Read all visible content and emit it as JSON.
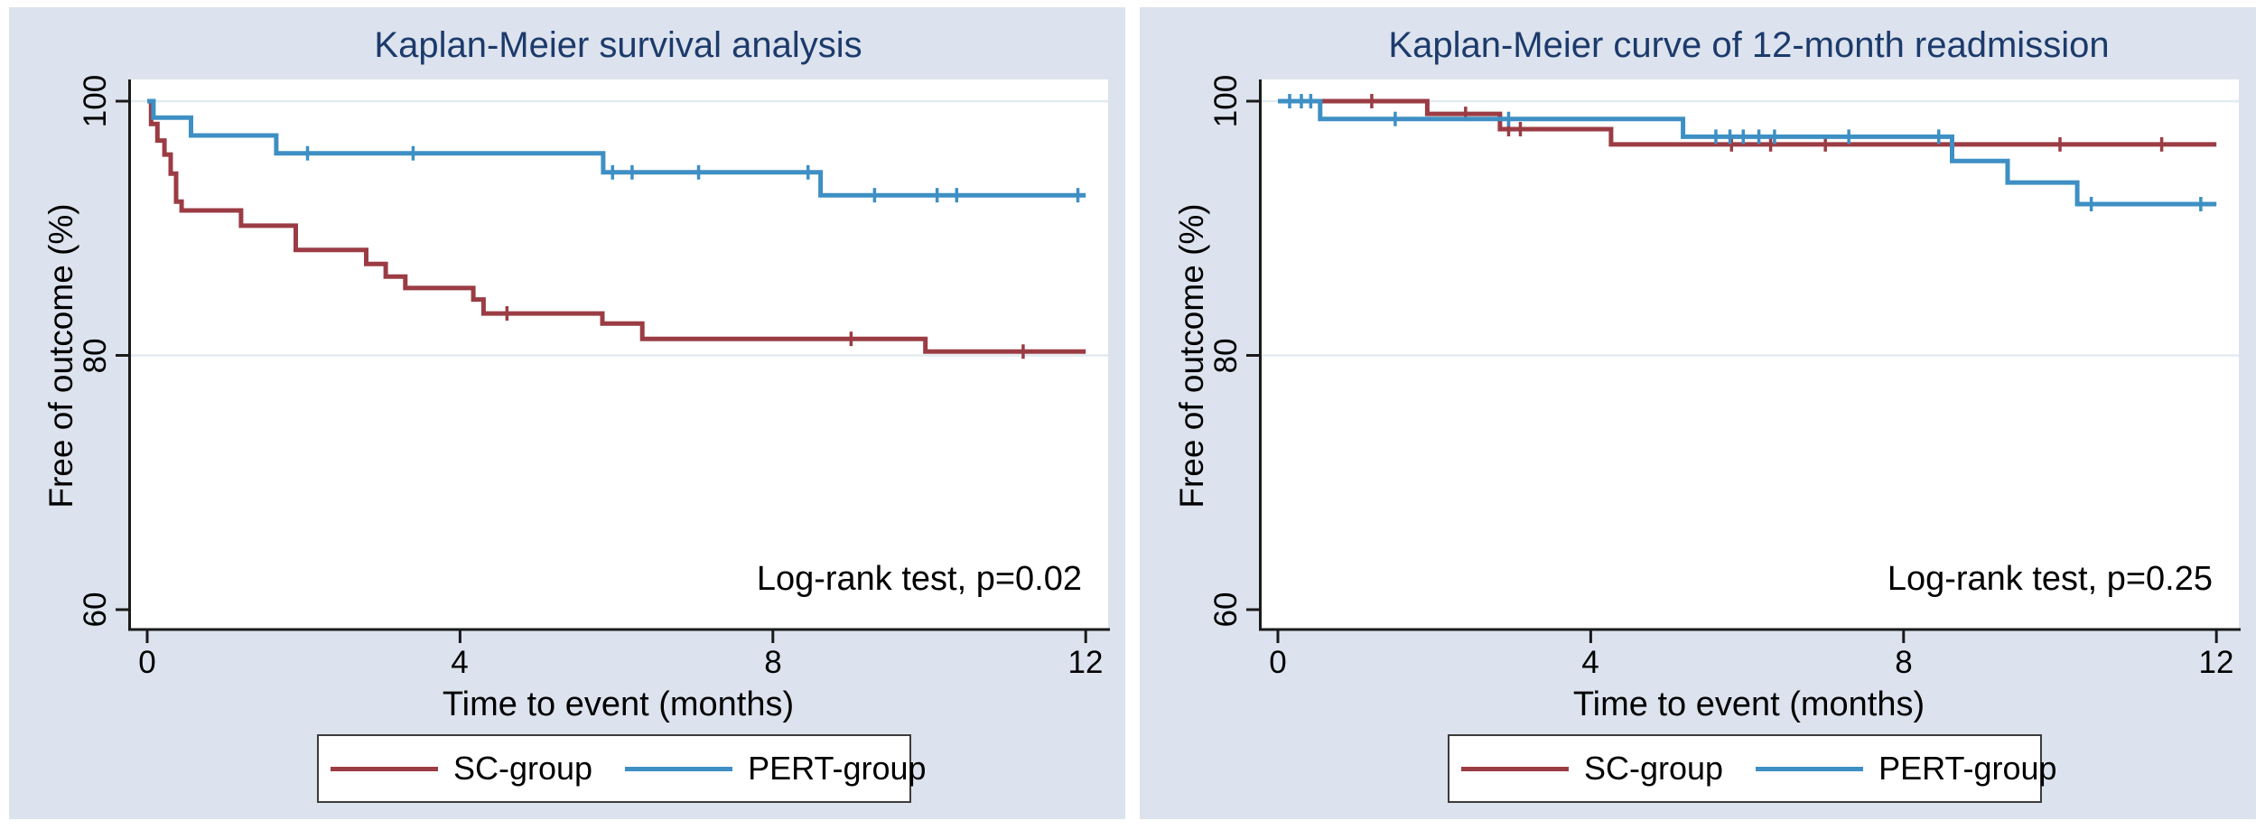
{
  "figure": {
    "background": "#ffffff",
    "panel_background": "#dce3ee",
    "plot_background": "#ffffff",
    "gridline_color": "#e2ecef",
    "axis_color": "#1a1a1a",
    "title_color": "#1c3a6b",
    "text_color": "#000000",
    "legend_border_color": "#3c3c3c"
  },
  "chart_data": [
    {
      "type": "line",
      "subtype": "kaplan-meier-step",
      "title": "Kaplan-Meier survival analysis",
      "xlabel": "Time to event (months)",
      "ylabel": "Free of outcome (%)",
      "annotation": "Log-rank test, p=0.02",
      "xlim": [
        0,
        12
      ],
      "ylim": [
        60,
        100
      ],
      "xtick_labels": [
        "0",
        "4",
        "8",
        "12"
      ],
      "xtick_values": [
        0,
        4,
        8,
        12
      ],
      "ytick_labels": [
        "100",
        "80",
        "60"
      ],
      "ytick_values": [
        100,
        80,
        60
      ],
      "grid_values": [
        100,
        80
      ],
      "grid": "horizontal-major",
      "legend_position": "bottom-center",
      "series": [
        {
          "name": "SC-group",
          "color": "#9b3c44",
          "start_value": 100,
          "steps": [
            [
              0.05,
              98.2
            ],
            [
              0.13,
              96.9
            ],
            [
              0.22,
              95.8
            ],
            [
              0.3,
              94.3
            ],
            [
              0.37,
              92.1
            ],
            [
              0.44,
              91.4
            ],
            [
              1.2,
              90.2
            ],
            [
              1.9,
              88.3
            ],
            [
              2.8,
              87.2
            ],
            [
              3.05,
              86.2
            ],
            [
              3.3,
              85.3
            ],
            [
              4.17,
              84.4
            ],
            [
              4.3,
              83.3
            ],
            [
              5.82,
              82.5
            ],
            [
              6.33,
              81.3
            ],
            [
              9.95,
              80.3
            ]
          ],
          "end_time": 12,
          "censor_marks": [
            [
              4.6,
              83.3
            ],
            [
              9.0,
              81.3
            ],
            [
              11.2,
              80.3
            ]
          ]
        },
        {
          "name": "PERT-group",
          "color": "#3e8fc4",
          "start_value": 100,
          "steps": [
            [
              0.08,
              98.7
            ],
            [
              0.56,
              97.3
            ],
            [
              1.65,
              95.9
            ],
            [
              5.83,
              94.4
            ],
            [
              8.61,
              92.6
            ]
          ],
          "end_time": 12,
          "censor_marks": [
            [
              2.05,
              95.9
            ],
            [
              3.4,
              95.9
            ],
            [
              5.95,
              94.4
            ],
            [
              6.2,
              94.4
            ],
            [
              7.05,
              94.4
            ],
            [
              8.45,
              94.4
            ],
            [
              9.3,
              92.6
            ],
            [
              10.1,
              92.6
            ],
            [
              10.35,
              92.6
            ],
            [
              11.9,
              92.6
            ]
          ]
        }
      ]
    },
    {
      "type": "line",
      "subtype": "kaplan-meier-step",
      "title": "Kaplan-Meier curve of 12-month readmission",
      "xlabel": "Time to event (months)",
      "ylabel": "Free of outcome (%)",
      "annotation": "Log-rank test, p=0.25",
      "xlim": [
        0,
        12
      ],
      "ylim": [
        60,
        100
      ],
      "xtick_labels": [
        "0",
        "4",
        "8",
        "12"
      ],
      "xtick_values": [
        0,
        4,
        8,
        12
      ],
      "ytick_labels": [
        "100",
        "80",
        "60"
      ],
      "ytick_values": [
        100,
        80,
        60
      ],
      "grid_values": [
        100,
        80
      ],
      "grid": "horizontal-major",
      "legend_position": "bottom-center",
      "series": [
        {
          "name": "SC-group",
          "color": "#9b3c44",
          "start_value": 100,
          "steps": [
            [
              1.91,
              99.0
            ],
            [
              2.84,
              97.8
            ],
            [
              4.26,
              96.6
            ]
          ],
          "end_time": 12,
          "censor_marks": [
            [
              1.2,
              100
            ],
            [
              2.4,
              99.0
            ],
            [
              2.95,
              97.8
            ],
            [
              3.1,
              97.8
            ],
            [
              5.8,
              96.6
            ],
            [
              6.3,
              96.6
            ],
            [
              7.0,
              96.6
            ],
            [
              10.0,
              96.6
            ],
            [
              11.3,
              96.6
            ]
          ]
        },
        {
          "name": "PERT-group",
          "color": "#3e8fc4",
          "start_value": 100,
          "steps": [
            [
              0.54,
              98.6
            ],
            [
              5.18,
              97.2
            ],
            [
              8.62,
              95.3
            ],
            [
              9.33,
              93.6
            ],
            [
              10.22,
              91.9
            ]
          ],
          "end_time": 12,
          "censor_marks": [
            [
              0.15,
              100
            ],
            [
              0.3,
              100
            ],
            [
              0.42,
              100
            ],
            [
              1.5,
              98.6
            ],
            [
              2.95,
              98.6
            ],
            [
              5.6,
              97.2
            ],
            [
              5.78,
              97.2
            ],
            [
              5.95,
              97.2
            ],
            [
              6.15,
              97.2
            ],
            [
              6.35,
              97.2
            ],
            [
              7.3,
              97.2
            ],
            [
              8.45,
              97.2
            ],
            [
              10.4,
              91.9
            ],
            [
              11.8,
              91.9
            ]
          ]
        }
      ]
    }
  ]
}
